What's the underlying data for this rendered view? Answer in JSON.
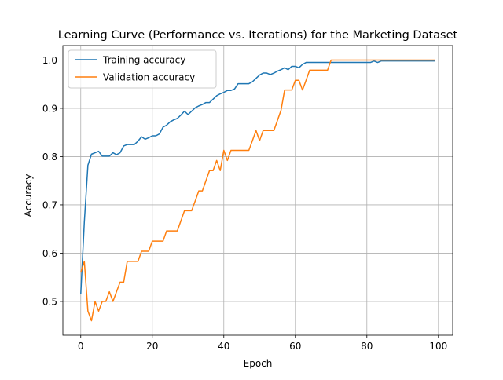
{
  "chart_data": {
    "type": "line",
    "title": "Learning Curve (Performance vs. Iterations) for the Marketing Dataset",
    "xlabel": "Epoch",
    "ylabel": "Accuracy",
    "xlim": [
      -5,
      104
    ],
    "ylim": [
      0.43,
      1.03
    ],
    "xticks": [
      0,
      20,
      40,
      60,
      80,
      100
    ],
    "yticks": [
      0.5,
      0.6,
      0.7,
      0.8,
      0.9,
      1.0
    ],
    "xtick_labels": [
      "0",
      "20",
      "40",
      "60",
      "80",
      "100"
    ],
    "ytick_labels": [
      "0.5",
      "0.6",
      "0.7",
      "0.8",
      "0.9",
      "1.0"
    ],
    "grid": true,
    "legend_position": "top-left",
    "x": [
      0,
      1,
      2,
      3,
      4,
      5,
      6,
      7,
      8,
      9,
      10,
      11,
      12,
      13,
      14,
      15,
      16,
      17,
      18,
      19,
      20,
      21,
      22,
      23,
      24,
      25,
      26,
      27,
      28,
      29,
      30,
      31,
      32,
      33,
      34,
      35,
      36,
      37,
      38,
      39,
      40,
      41,
      42,
      43,
      44,
      45,
      46,
      47,
      48,
      49,
      50,
      51,
      52,
      53,
      54,
      55,
      56,
      57,
      58,
      59,
      60,
      61,
      62,
      63,
      64,
      65,
      66,
      67,
      68,
      69,
      70,
      71,
      72,
      73,
      74,
      75,
      76,
      77,
      78,
      79,
      80,
      81,
      82,
      83,
      84,
      85,
      86,
      87,
      88,
      89,
      90,
      91,
      92,
      93,
      94,
      95,
      96,
      97,
      98,
      99
    ],
    "series": [
      {
        "name": "Training accuracy",
        "color": "#1f77b4",
        "values": [
          0.515,
          0.665,
          0.782,
          0.805,
          0.808,
          0.811,
          0.801,
          0.801,
          0.801,
          0.808,
          0.804,
          0.808,
          0.822,
          0.825,
          0.825,
          0.825,
          0.832,
          0.841,
          0.836,
          0.839,
          0.843,
          0.843,
          0.847,
          0.861,
          0.865,
          0.872,
          0.876,
          0.879,
          0.886,
          0.894,
          0.887,
          0.894,
          0.901,
          0.905,
          0.908,
          0.912,
          0.912,
          0.919,
          0.926,
          0.93,
          0.933,
          0.937,
          0.937,
          0.94,
          0.951,
          0.951,
          0.951,
          0.951,
          0.955,
          0.962,
          0.969,
          0.973,
          0.973,
          0.97,
          0.973,
          0.977,
          0.98,
          0.984,
          0.98,
          0.987,
          0.987,
          0.984,
          0.991,
          0.995,
          0.995,
          0.995,
          0.995,
          0.995,
          0.995,
          0.995,
          0.995,
          0.995,
          0.995,
          0.995,
          0.995,
          0.995,
          0.995,
          0.995,
          0.995,
          0.995,
          0.995,
          0.995,
          0.998,
          0.995,
          0.998,
          0.998,
          0.998,
          0.998,
          0.998,
          0.998,
          0.998,
          0.998,
          0.998,
          0.998,
          0.998,
          0.998,
          0.998,
          0.998,
          0.998,
          0.998
        ]
      },
      {
        "name": "Validation accuracy",
        "color": "#ff7f0e",
        "values": [
          0.56,
          0.583,
          0.48,
          0.46,
          0.5,
          0.48,
          0.5,
          0.5,
          0.52,
          0.5,
          0.52,
          0.54,
          0.54,
          0.583,
          0.583,
          0.583,
          0.583,
          0.604,
          0.604,
          0.604,
          0.625,
          0.625,
          0.625,
          0.625,
          0.646,
          0.646,
          0.646,
          0.646,
          0.667,
          0.688,
          0.688,
          0.688,
          0.708,
          0.729,
          0.729,
          0.75,
          0.771,
          0.771,
          0.792,
          0.771,
          0.813,
          0.792,
          0.813,
          0.813,
          0.813,
          0.813,
          0.813,
          0.813,
          0.833,
          0.854,
          0.833,
          0.854,
          0.854,
          0.854,
          0.854,
          0.875,
          0.896,
          0.938,
          0.938,
          0.938,
          0.958,
          0.958,
          0.938,
          0.958,
          0.979,
          0.979,
          0.979,
          0.979,
          0.979,
          0.979,
          1.0,
          1.0,
          1.0,
          1.0,
          1.0,
          1.0,
          1.0,
          1.0,
          1.0,
          1.0,
          1.0,
          1.0,
          1.0,
          1.0,
          1.0,
          1.0,
          1.0,
          1.0,
          1.0,
          1.0,
          1.0,
          1.0,
          1.0,
          1.0,
          1.0,
          1.0,
          1.0,
          1.0,
          1.0,
          1.0
        ]
      }
    ]
  }
}
